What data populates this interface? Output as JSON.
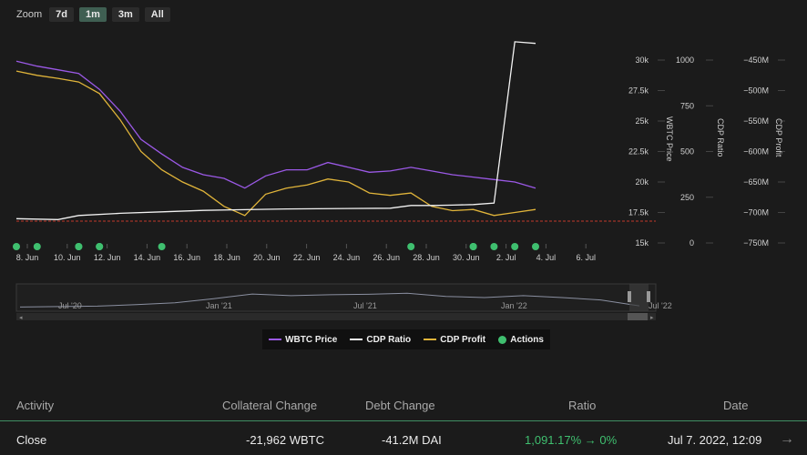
{
  "zoom": {
    "label": "Zoom",
    "buttons": [
      "7d",
      "1m",
      "3m",
      "All"
    ],
    "active": "1m"
  },
  "chart_data": {
    "type": "line",
    "x_tick_labels": [
      "8. Jun",
      "10. Jun",
      "12. Jun",
      "14. Jun",
      "16. Jun",
      "18. Jun",
      "20. Jun",
      "22. Jun",
      "24. Jun",
      "26. Jun",
      "28. Jun",
      "30. Jun",
      "2. Jul",
      "4. Jul",
      "6. Jul"
    ],
    "x_range": [
      "2022-06-07",
      "2022-07-07"
    ],
    "axes": [
      {
        "label": "WBTC Price",
        "ticks": [
          "15k",
          "17.5k",
          "20k",
          "22.5k",
          "25k",
          "27.5k",
          "30k"
        ],
        "range": [
          15000,
          30000
        ]
      },
      {
        "label": "CDP Ratio",
        "ticks": [
          "0",
          "250",
          "500",
          "750",
          "1000"
        ],
        "range": [
          0,
          1000
        ]
      },
      {
        "label": "CDP Profit",
        "ticks": [
          "−750M",
          "−700M",
          "−650M",
          "−600M",
          "−550M",
          "−500M",
          "−450M"
        ],
        "range": [
          -750,
          -450
        ]
      }
    ],
    "series": [
      {
        "name": "WBTC Price",
        "color": "#9b59e6",
        "x": [
          "2022-06-07",
          "2022-06-08",
          "2022-06-09",
          "2022-06-10",
          "2022-06-11",
          "2022-06-12",
          "2022-06-13",
          "2022-06-14",
          "2022-06-15",
          "2022-06-16",
          "2022-06-17",
          "2022-06-18",
          "2022-06-19",
          "2022-06-20",
          "2022-06-21",
          "2022-06-22",
          "2022-06-23",
          "2022-06-24",
          "2022-06-25",
          "2022-06-26",
          "2022-06-27",
          "2022-06-28",
          "2022-06-29",
          "2022-06-30",
          "2022-07-01",
          "2022-07-02"
        ],
        "values": [
          29900,
          29500,
          29200,
          28900,
          27600,
          25800,
          23500,
          22300,
          21200,
          20600,
          20300,
          19500,
          20500,
          21000,
          21000,
          21600,
          21200,
          20800,
          20900,
          21200,
          20900,
          20600,
          20400,
          20200,
          20000,
          19500
        ]
      },
      {
        "name": "CDP Profit",
        "color": "#e0b43a",
        "x": [
          "2022-06-07",
          "2022-06-08",
          "2022-06-09",
          "2022-06-10",
          "2022-06-11",
          "2022-06-12",
          "2022-06-13",
          "2022-06-14",
          "2022-06-15",
          "2022-06-16",
          "2022-06-17",
          "2022-06-18",
          "2022-06-19",
          "2022-06-20",
          "2022-06-21",
          "2022-06-22",
          "2022-06-23",
          "2022-06-24",
          "2022-06-25",
          "2022-06-26",
          "2022-06-27",
          "2022-06-28",
          "2022-06-29",
          "2022-06-30",
          "2022-07-01",
          "2022-07-02"
        ],
        "values": [
          -468,
          -475,
          -480,
          -486,
          -505,
          -548,
          -600,
          -630,
          -650,
          -665,
          -690,
          -705,
          -670,
          -660,
          -655,
          -645,
          -650,
          -668,
          -672,
          -668,
          -690,
          -697,
          -695,
          -705,
          -700,
          -695
        ]
      },
      {
        "name": "CDP Ratio",
        "color": "#f2f2f2",
        "x": [
          "2022-06-07",
          "2022-06-09",
          "2022-06-10",
          "2022-06-12",
          "2022-06-14",
          "2022-06-16",
          "2022-06-20",
          "2022-06-25",
          "2022-06-26",
          "2022-06-27",
          "2022-06-28",
          "2022-06-29",
          "2022-06-30",
          "2022-07-01",
          "2022-07-02"
        ],
        "values": [
          133,
          128,
          150,
          162,
          170,
          178,
          186,
          190,
          205,
          205,
          207,
          210,
          218,
          1100,
          1091
        ]
      }
    ],
    "actions": {
      "name": "Actions",
      "color": "#3fbf6f",
      "dates": [
        "2022-06-07",
        "2022-06-08",
        "2022-06-10",
        "2022-06-10",
        "2022-06-11",
        "2022-06-11",
        "2022-06-14",
        "2022-06-26",
        "2022-06-29",
        "2022-06-29",
        "2022-06-30",
        "2022-07-01",
        "2022-07-02"
      ]
    },
    "reference_line_color": "#c0392b",
    "grid": false,
    "legend": "bottom-center"
  },
  "navigator": {
    "labels": [
      "Jul '20",
      "Jan '21",
      "Jul '21",
      "Jan '22",
      "Jul '22"
    ]
  },
  "legend": [
    {
      "label": "WBTC Price",
      "color": "#9b59e6",
      "kind": "line"
    },
    {
      "label": "CDP Ratio",
      "color": "#f2f2f2",
      "kind": "line"
    },
    {
      "label": "CDP Profit",
      "color": "#e0b43a",
      "kind": "line"
    },
    {
      "label": "Actions",
      "color": "#3fbf6f",
      "kind": "dot"
    }
  ],
  "table": {
    "headers": {
      "activity": "Activity",
      "collateral": "Collateral Change",
      "debt": "Debt Change",
      "ratio": "Ratio",
      "date": "Date"
    },
    "rows": [
      {
        "activity": "Close",
        "collateral": "-21,962 WBTC",
        "debt": "-41.2M DAI",
        "ratio": "1,091.17% → 0%",
        "date": "Jul 7. 2022, 12:09"
      }
    ]
  }
}
